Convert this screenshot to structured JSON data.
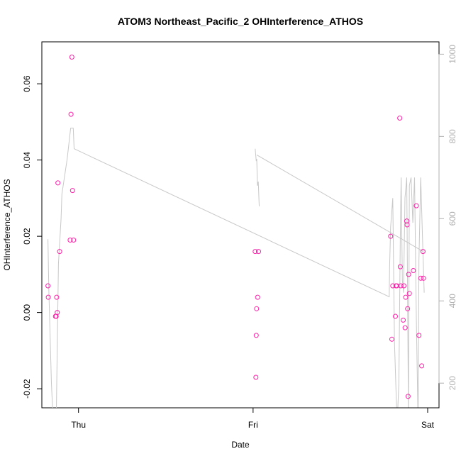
{
  "chart_data": {
    "type": "scatter",
    "title": "ATOM3 Northeast_Pacific_2 OHInterference_ATHOS",
    "xlabel": "Date",
    "ylabel": "OHInterference_ATHOS",
    "x_ticks": [
      "Thu",
      "Fri",
      "Sat"
    ],
    "x_ticks_days": [
      1,
      2,
      3
    ],
    "xlim_days": [
      0.79,
      3.065
    ],
    "ylim": [
      -0.025,
      0.071
    ],
    "y_ticks": [
      -0.02,
      0.0,
      0.02,
      0.04,
      0.06
    ],
    "y_tick_labels": [
      "-0.02",
      "0.00",
      "0.02",
      "0.04",
      "0.06"
    ],
    "right_axis": {
      "label": "",
      "ticks": [
        200,
        400,
        600,
        800,
        1000
      ],
      "tick_labels": [
        "200",
        "400",
        "600",
        "800",
        "1000"
      ],
      "lim": [
        1030,
        140
      ],
      "color": "#b0b0b0"
    },
    "series": [
      {
        "type": "points",
        "color": "#ff1fa8",
        "points": [
          {
            "x": 0.825,
            "y": 0.007
          },
          {
            "x": 0.827,
            "y": 0.004
          },
          {
            "x": 0.868,
            "y": -0.001
          },
          {
            "x": 0.872,
            "y": -0.001
          },
          {
            "x": 0.875,
            "y": 0.004
          },
          {
            "x": 0.878,
            "y": 0.0
          },
          {
            "x": 0.882,
            "y": 0.034
          },
          {
            "x": 0.892,
            "y": 0.016
          },
          {
            "x": 0.952,
            "y": 0.019
          },
          {
            "x": 0.957,
            "y": 0.052
          },
          {
            "x": 0.962,
            "y": 0.067
          },
          {
            "x": 0.966,
            "y": 0.032
          },
          {
            "x": 0.972,
            "y": 0.019
          },
          {
            "x": 2.012,
            "y": 0.016
          },
          {
            "x": 2.016,
            "y": -0.017
          },
          {
            "x": 2.018,
            "y": -0.006
          },
          {
            "x": 2.02,
            "y": 0.001
          },
          {
            "x": 2.026,
            "y": 0.004
          },
          {
            "x": 2.031,
            "y": 0.016
          },
          {
            "x": 2.788,
            "y": 0.02
          },
          {
            "x": 2.795,
            "y": -0.007
          },
          {
            "x": 2.8,
            "y": 0.007
          },
          {
            "x": 2.815,
            "y": -0.001
          },
          {
            "x": 2.819,
            "y": 0.007
          },
          {
            "x": 2.823,
            "y": 0.007
          },
          {
            "x": 2.84,
            "y": 0.051
          },
          {
            "x": 2.843,
            "y": 0.012
          },
          {
            "x": 2.846,
            "y": 0.007
          },
          {
            "x": 2.86,
            "y": -0.002
          },
          {
            "x": 2.864,
            "y": 0.007
          },
          {
            "x": 2.871,
            "y": -0.004
          },
          {
            "x": 2.874,
            "y": 0.004
          },
          {
            "x": 2.88,
            "y": 0.024
          },
          {
            "x": 2.882,
            "y": 0.023
          },
          {
            "x": 2.885,
            "y": 0.001
          },
          {
            "x": 2.888,
            "y": -0.022
          },
          {
            "x": 2.891,
            "y": 0.01
          },
          {
            "x": 2.895,
            "y": 0.005
          },
          {
            "x": 2.918,
            "y": 0.011
          },
          {
            "x": 2.935,
            "y": 0.028
          },
          {
            "x": 2.95,
            "y": -0.006
          },
          {
            "x": 2.96,
            "y": 0.009
          },
          {
            "x": 2.966,
            "y": -0.014
          },
          {
            "x": 2.973,
            "y": 0.016
          },
          {
            "x": 2.976,
            "y": 0.009
          }
        ]
      },
      {
        "type": "line",
        "color": "#c8c8c8",
        "axis": "right",
        "points": [
          {
            "x": 0.825,
            "y": 550
          },
          {
            "x": 0.83,
            "y": 430
          },
          {
            "x": 0.845,
            "y": 200
          },
          {
            "x": 0.86,
            "y": 60
          },
          {
            "x": 0.872,
            "y": 100
          },
          {
            "x": 0.885,
            "y": 490
          },
          {
            "x": 0.9,
            "y": 600
          },
          {
            "x": 0.905,
            "y": 660
          },
          {
            "x": 0.935,
            "y": 745
          },
          {
            "x": 0.955,
            "y": 820
          },
          {
            "x": 0.97,
            "y": 820
          },
          {
            "x": 0.975,
            "y": 770
          },
          {
            "x": 2.78,
            "y": 410
          },
          {
            "x": 2.782,
            "y": 480
          },
          {
            "x": 2.788,
            "y": 580
          },
          {
            "x": 2.8,
            "y": 650
          },
          {
            "x": 2.81,
            "y": 300
          },
          {
            "x": 2.825,
            "y": 100
          },
          {
            "x": 2.835,
            "y": 200
          },
          {
            "x": 2.843,
            "y": 550
          },
          {
            "x": 2.848,
            "y": 700
          },
          {
            "x": 2.855,
            "y": 450
          },
          {
            "x": 2.862,
            "y": 420
          },
          {
            "x": 2.87,
            "y": 650
          },
          {
            "x": 2.88,
            "y": 700
          },
          {
            "x": 2.89,
            "y": 120
          },
          {
            "x": 2.895,
            "y": 680
          },
          {
            "x": 2.905,
            "y": 700
          },
          {
            "x": 2.915,
            "y": 590
          },
          {
            "x": 2.925,
            "y": 700
          },
          {
            "x": 2.935,
            "y": 360
          },
          {
            "x": 2.945,
            "y": 100
          },
          {
            "x": 2.95,
            "y": 500
          },
          {
            "x": 2.96,
            "y": 700
          },
          {
            "x": 2.97,
            "y": 560
          },
          {
            "x": 2.98,
            "y": 420
          }
        ],
        "segments_extra": [
          [
            {
              "x": 2.012,
              "y": 770
            },
            {
              "x": 2.018,
              "y": 740
            },
            {
              "x": 2.021,
              "y": 745
            }
          ],
          [
            {
              "x": 2.021,
              "y": 745
            },
            {
              "x": 2.025,
              "y": 680
            },
            {
              "x": 2.03,
              "y": 690
            },
            {
              "x": 2.035,
              "y": 630
            }
          ],
          [
            {
              "x": 2.021,
              "y": 755
            },
            {
              "x": 2.975,
              "y": 520
            }
          ]
        ]
      }
    ]
  }
}
